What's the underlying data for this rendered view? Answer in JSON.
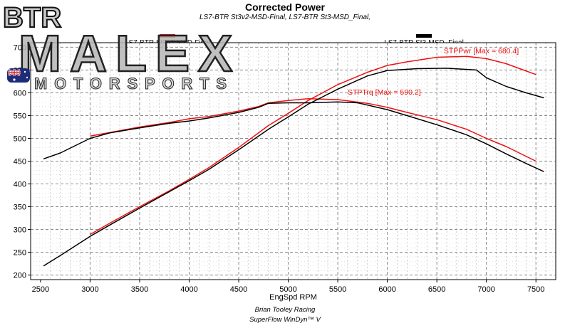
{
  "title": "Corrected Power",
  "subtitle": "LS7-BTR St3v2-MSD-Final, LS7-BTR St3-MSD_Final,",
  "logo": {
    "brand": "BTR",
    "name": "MALEX",
    "tagline": "MOTORSPORTS",
    "flag": "australia-flag-icon"
  },
  "footer": {
    "line1": "Brian Tooley Racing",
    "line2": "SuperFlow WinDyn™ V"
  },
  "legend": [
    {
      "label": "LS7-BTR St3v2-MSD-Final",
      "color": "#ee1111"
    },
    {
      "label": "LS7-BTR St3-MSD_Final",
      "color": "#000000"
    }
  ],
  "chart_data": {
    "type": "line",
    "xlabel": "EngSpd RPM",
    "ylabel": "",
    "xlim": [
      2400,
      7700
    ],
    "ylim": [
      190,
      710
    ],
    "xticks": [
      2500,
      3000,
      3500,
      4000,
      4500,
      5000,
      5500,
      6000,
      6500,
      7000,
      7500
    ],
    "yticks": [
      200,
      250,
      300,
      350,
      400,
      450,
      500,
      550,
      600,
      650,
      700
    ],
    "grid": true,
    "annotations": [
      {
        "text": "STPPwr [Max = 680.4]",
        "x": 6570,
        "y": 680,
        "color": "#ee1111"
      },
      {
        "text": "STPTrq [Max = 590.2]",
        "x": 5600,
        "y": 590,
        "color": "#ee1111"
      }
    ],
    "series": [
      {
        "name": "LS7-BTR St3v2-MSD-Final",
        "color": "#ee1111",
        "quantity": "STPTrq",
        "x": [
          3000,
          3200,
          3500,
          3800,
          4000,
          4200,
          4500,
          4700,
          4800,
          5000,
          5200,
          5500,
          5800,
          6000,
          6200,
          6500,
          6800,
          7000,
          7200,
          7500
        ],
        "y": [
          505,
          513,
          525,
          535,
          543,
          548,
          560,
          570,
          578,
          583,
          587,
          585,
          577,
          568,
          557,
          541,
          520,
          500,
          482,
          450
        ]
      },
      {
        "name": "LS7-BTR St3v2-MSD-Final",
        "color": "#ee1111",
        "quantity": "STPPwr",
        "x": [
          3000,
          3200,
          3500,
          3800,
          4000,
          4200,
          4500,
          4800,
          5000,
          5200,
          5500,
          5800,
          6000,
          6200,
          6500,
          6800,
          7000,
          7200,
          7500
        ],
        "y": [
          289,
          314,
          350,
          385,
          410,
          436,
          480,
          528,
          555,
          583,
          618,
          645,
          660,
          668,
          678,
          680,
          675,
          664,
          640
        ]
      },
      {
        "name": "LS7-BTR St3-MSD_Final",
        "color": "#000000",
        "quantity": "STPTrq",
        "x": [
          2530,
          2700,
          3000,
          3200,
          3500,
          3800,
          4000,
          4200,
          4500,
          4700,
          4800,
          5000,
          5200,
          5500,
          5700,
          6000,
          6200,
          6500,
          6800,
          7000,
          7200,
          7400,
          7580
        ],
        "y": [
          455,
          468,
          500,
          512,
          523,
          533,
          538,
          545,
          557,
          568,
          577,
          578,
          578,
          580,
          578,
          563,
          550,
          530,
          508,
          488,
          466,
          445,
          427
        ]
      },
      {
        "name": "LS7-BTR St3-MSD_Final",
        "color": "#000000",
        "quantity": "STPPwr",
        "x": [
          2530,
          2700,
          3000,
          3200,
          3500,
          3800,
          4000,
          4200,
          4500,
          4800,
          5000,
          5200,
          5500,
          5800,
          6000,
          6300,
          6600,
          6900,
          7000,
          7200,
          7400,
          7580
        ],
        "y": [
          220,
          243,
          285,
          310,
          347,
          383,
          407,
          432,
          475,
          520,
          547,
          575,
          608,
          637,
          649,
          653,
          654,
          650,
          633,
          614,
          600,
          589
        ]
      }
    ]
  }
}
